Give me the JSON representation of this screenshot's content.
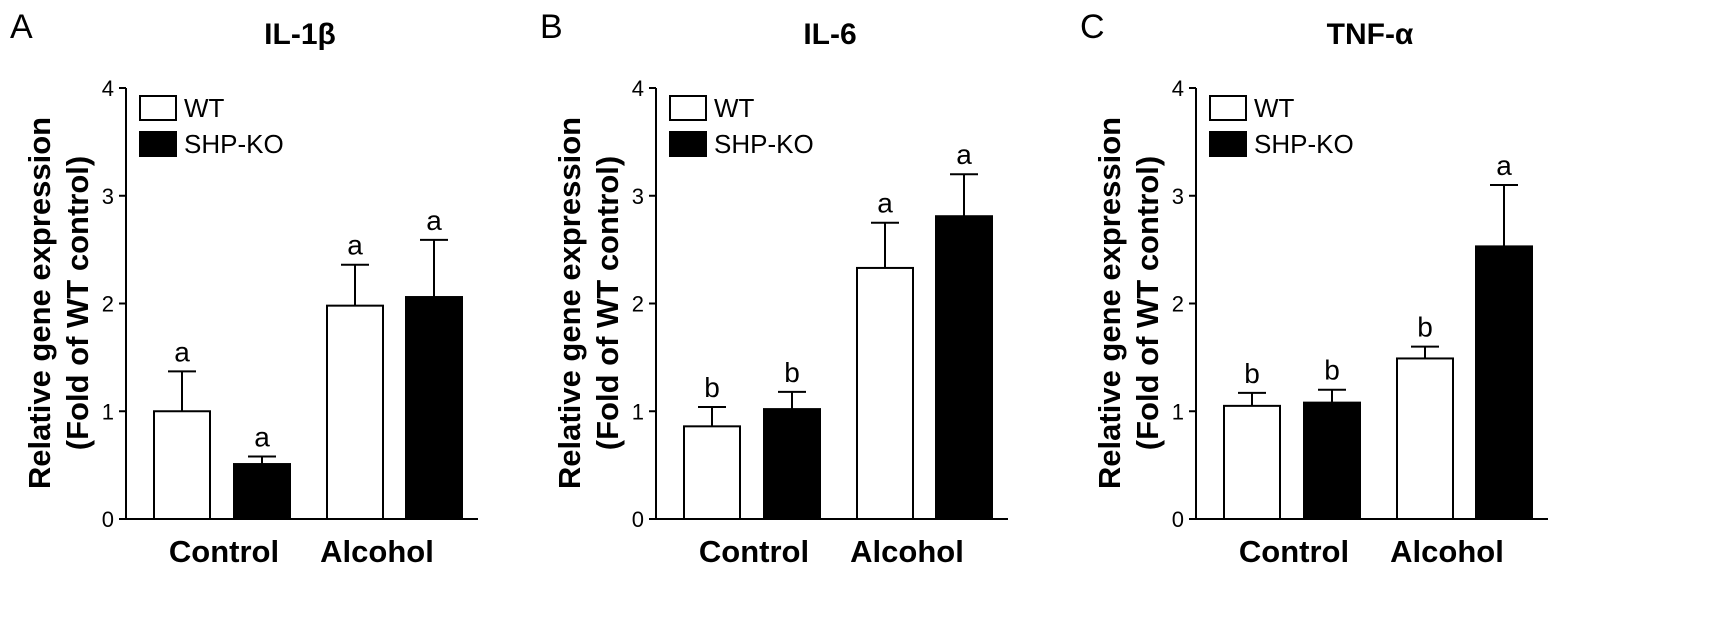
{
  "figure": {
    "colors": {
      "WT": "#ffffff",
      "SHP-KO": "#000000",
      "axis": "#000000"
    }
  },
  "chart_data": [
    {
      "type": "bar",
      "panel_letter": "A",
      "title": "IL-1β",
      "ylabel": "Relative gene expression",
      "ylabel2": "(Fold of WT control)",
      "xlabel": "",
      "categories": [
        "Control",
        "Alcohol"
      ],
      "ylim": [
        0,
        4
      ],
      "yticks": [
        0,
        1,
        2,
        3,
        4
      ],
      "grid": false,
      "legend_position": "top-left",
      "series": [
        {
          "name": "WT",
          "color": "#ffffff",
          "values": [
            1.0,
            1.98
          ],
          "errors": [
            0.37,
            0.38
          ],
          "labels": [
            "a",
            "a"
          ]
        },
        {
          "name": "SHP-KO",
          "color": "#000000",
          "values": [
            0.51,
            2.06
          ],
          "errors": [
            0.07,
            0.53
          ],
          "labels": [
            "a",
            "a"
          ]
        }
      ]
    },
    {
      "type": "bar",
      "panel_letter": "B",
      "title": "IL-6",
      "ylabel": "Relative gene expression",
      "ylabel2": "(Fold of WT control)",
      "xlabel": "",
      "categories": [
        "Control",
        "Alcohol"
      ],
      "ylim": [
        0,
        4
      ],
      "yticks": [
        0,
        1,
        2,
        3,
        4
      ],
      "grid": false,
      "legend_position": "top-left",
      "series": [
        {
          "name": "WT",
          "color": "#ffffff",
          "values": [
            0.86,
            2.33
          ],
          "errors": [
            0.18,
            0.42
          ],
          "labels": [
            "b",
            "a"
          ]
        },
        {
          "name": "SHP-KO",
          "color": "#000000",
          "values": [
            1.02,
            2.81
          ],
          "errors": [
            0.16,
            0.39
          ],
          "labels": [
            "b",
            "a"
          ]
        }
      ]
    },
    {
      "type": "bar",
      "panel_letter": "C",
      "title": "TNF-α",
      "ylabel": "Relative gene expression",
      "ylabel2": "(Fold of WT control)",
      "xlabel": "",
      "categories": [
        "Control",
        "Alcohol"
      ],
      "ylim": [
        0,
        4
      ],
      "yticks": [
        0,
        1,
        2,
        3,
        4
      ],
      "grid": false,
      "legend_position": "top-left",
      "series": [
        {
          "name": "WT",
          "color": "#ffffff",
          "values": [
            1.05,
            1.49
          ],
          "errors": [
            0.12,
            0.11
          ],
          "labels": [
            "b",
            "b"
          ]
        },
        {
          "name": "SHP-KO",
          "color": "#000000",
          "values": [
            1.08,
            2.53
          ],
          "errors": [
            0.12,
            0.57
          ],
          "labels": [
            "b",
            "a"
          ]
        }
      ]
    }
  ]
}
